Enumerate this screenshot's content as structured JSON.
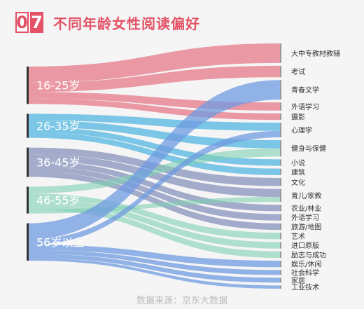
{
  "header": {
    "number_digits": [
      "0",
      "7"
    ],
    "title": "不同年龄女性阅读偏好"
  },
  "source": "数据来源：京东大数据",
  "chart_data": {
    "type": "sankey",
    "sources": [
      {
        "name": "16-25岁",
        "color": "#e35a6e"
      },
      {
        "name": "26-35岁",
        "color": "#29a7dc"
      },
      {
        "name": "36-45岁",
        "color": "#6a79ad"
      },
      {
        "name": "46-55岁",
        "color": "#7fd0b3"
      },
      {
        "name": "56岁以上",
        "color": "#6f9be0"
      }
    ],
    "targets": [
      "大中专教材教辅",
      "考试",
      "青春文学",
      "外语学习",
      "摄影",
      "心理学",
      "健身与保健",
      "小说",
      "建筑",
      "文化",
      "育儿/家教",
      "农业/林业",
      "外语学习",
      "旅游/地图",
      "艺术",
      "进口原版",
      "励志与成功",
      "娱乐/休闲",
      "社会科学",
      "家居",
      "工业技术"
    ],
    "links": [
      {
        "source": 0,
        "target": 0,
        "value": 12
      },
      {
        "source": 0,
        "target": 1,
        "value": 7
      },
      {
        "source": 0,
        "target": 3,
        "value": 5
      },
      {
        "source": 0,
        "target": 4,
        "value": 4
      },
      {
        "source": 1,
        "target": 5,
        "value": 5
      },
      {
        "source": 1,
        "target": 6,
        "value": 5
      },
      {
        "source": 1,
        "target": 7,
        "value": 4
      },
      {
        "source": 1,
        "target": 8,
        "value": 4
      },
      {
        "source": 2,
        "target": 9,
        "value": 5
      },
      {
        "source": 2,
        "target": 10,
        "value": 5
      },
      {
        "source": 2,
        "target": 11,
        "value": 4
      },
      {
        "source": 2,
        "target": 12,
        "value": 4
      },
      {
        "source": 2,
        "target": 13,
        "value": 4
      },
      {
        "source": 3,
        "target": 6,
        "value": 5
      },
      {
        "source": 3,
        "target": 14,
        "value": 4
      },
      {
        "source": 3,
        "target": 15,
        "value": 4
      },
      {
        "source": 3,
        "target": 16,
        "value": 4
      },
      {
        "source": 3,
        "target": 10,
        "value": 3
      },
      {
        "source": 4,
        "target": 2,
        "value": 12
      },
      {
        "source": 4,
        "target": 5,
        "value": 4
      },
      {
        "source": 4,
        "target": 17,
        "value": 4
      },
      {
        "source": 4,
        "target": 18,
        "value": 3
      },
      {
        "source": 4,
        "target": 19,
        "value": 3
      },
      {
        "source": 4,
        "target": 20,
        "value": 2
      }
    ]
  }
}
